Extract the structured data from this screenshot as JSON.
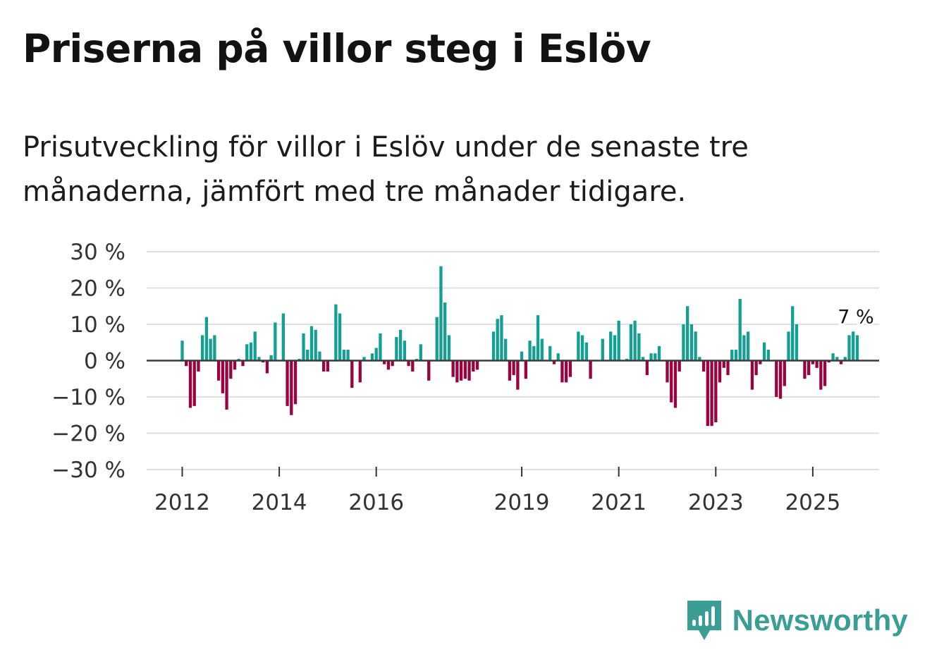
{
  "chart_data": {
    "type": "bar",
    "title": "Priserna på villor steg i Eslöv",
    "subtitle": "Prisutveckling för villor i Eslöv under de senaste tre månaderna, jämfört med tre månader tidigare.",
    "xlabel": "",
    "ylabel": "",
    "ylim": [
      -30,
      30
    ],
    "y_ticks": [
      30,
      20,
      10,
      0,
      -10,
      -20,
      -30
    ],
    "y_tick_labels": [
      "30 %",
      "20 %",
      "10 %",
      "0 %",
      "−10 %",
      "−20 %",
      "−30 %"
    ],
    "x_ticks": [
      {
        "year": 2012,
        "label": "2012"
      },
      {
        "year": 2014,
        "label": "2014"
      },
      {
        "year": 2016,
        "label": "2016"
      },
      {
        "year": 2019,
        "label": "2019"
      },
      {
        "year": 2021,
        "label": "2021"
      },
      {
        "year": 2023,
        "label": "2023"
      },
      {
        "year": 2025,
        "label": "2025"
      }
    ],
    "start": {
      "year": 2012,
      "month": 1
    },
    "frequency": "monthly",
    "values": [
      5.5,
      -1.5,
      -13,
      -12.5,
      -3,
      7,
      12,
      6,
      7,
      -5.5,
      -9,
      -13.5,
      -5,
      -2.5,
      0.5,
      -1.5,
      4.5,
      5,
      8,
      1,
      -0.5,
      -3.5,
      1.5,
      10.5,
      0,
      13,
      -12.5,
      -15,
      -12,
      0.5,
      7.5,
      3,
      9.5,
      8.5,
      2.5,
      -3,
      -3,
      0,
      15.5,
      13,
      3,
      3,
      -7.5,
      0,
      -6,
      1,
      0,
      2,
      3.5,
      7.5,
      -1,
      -2.5,
      -1.5,
      6.5,
      8.5,
      5.5,
      -1.5,
      -3,
      0.5,
      4.5,
      0,
      -5.5,
      0,
      12,
      26,
      16,
      7,
      -4.5,
      -6,
      -5.5,
      -5,
      -5.5,
      -3,
      -2.5,
      0,
      0,
      0,
      8,
      11.5,
      12.5,
      6,
      -5.5,
      -4,
      -8,
      2.5,
      -5,
      5.5,
      4,
      12.5,
      6,
      0,
      4,
      -1,
      2,
      -6,
      -6,
      -4.5,
      0,
      8,
      7,
      5,
      -5,
      0,
      0,
      6,
      0,
      8,
      7,
      11,
      0,
      0.5,
      10,
      11,
      7.5,
      1,
      -4,
      2,
      2,
      4,
      0,
      -6,
      -11.5,
      -13,
      -3,
      10,
      15,
      10,
      8,
      1,
      -3,
      -18,
      -18,
      -17,
      -6,
      -2,
      -4,
      3,
      3,
      17,
      7,
      8,
      -8,
      -4,
      -1,
      5,
      3,
      0,
      -10,
      -10.5,
      -7,
      8,
      15,
      10,
      0,
      -5,
      -4,
      -1,
      -2,
      -8,
      -7,
      -0.5,
      2,
      1,
      -1,
      1,
      7,
      8,
      7
    ],
    "positive_color": "#139f91",
    "negative_color": "#9a0240",
    "annotation": {
      "label": "7 %"
    }
  },
  "brand": {
    "name": "Newsworthy",
    "logo_color": "#3a9e94"
  }
}
